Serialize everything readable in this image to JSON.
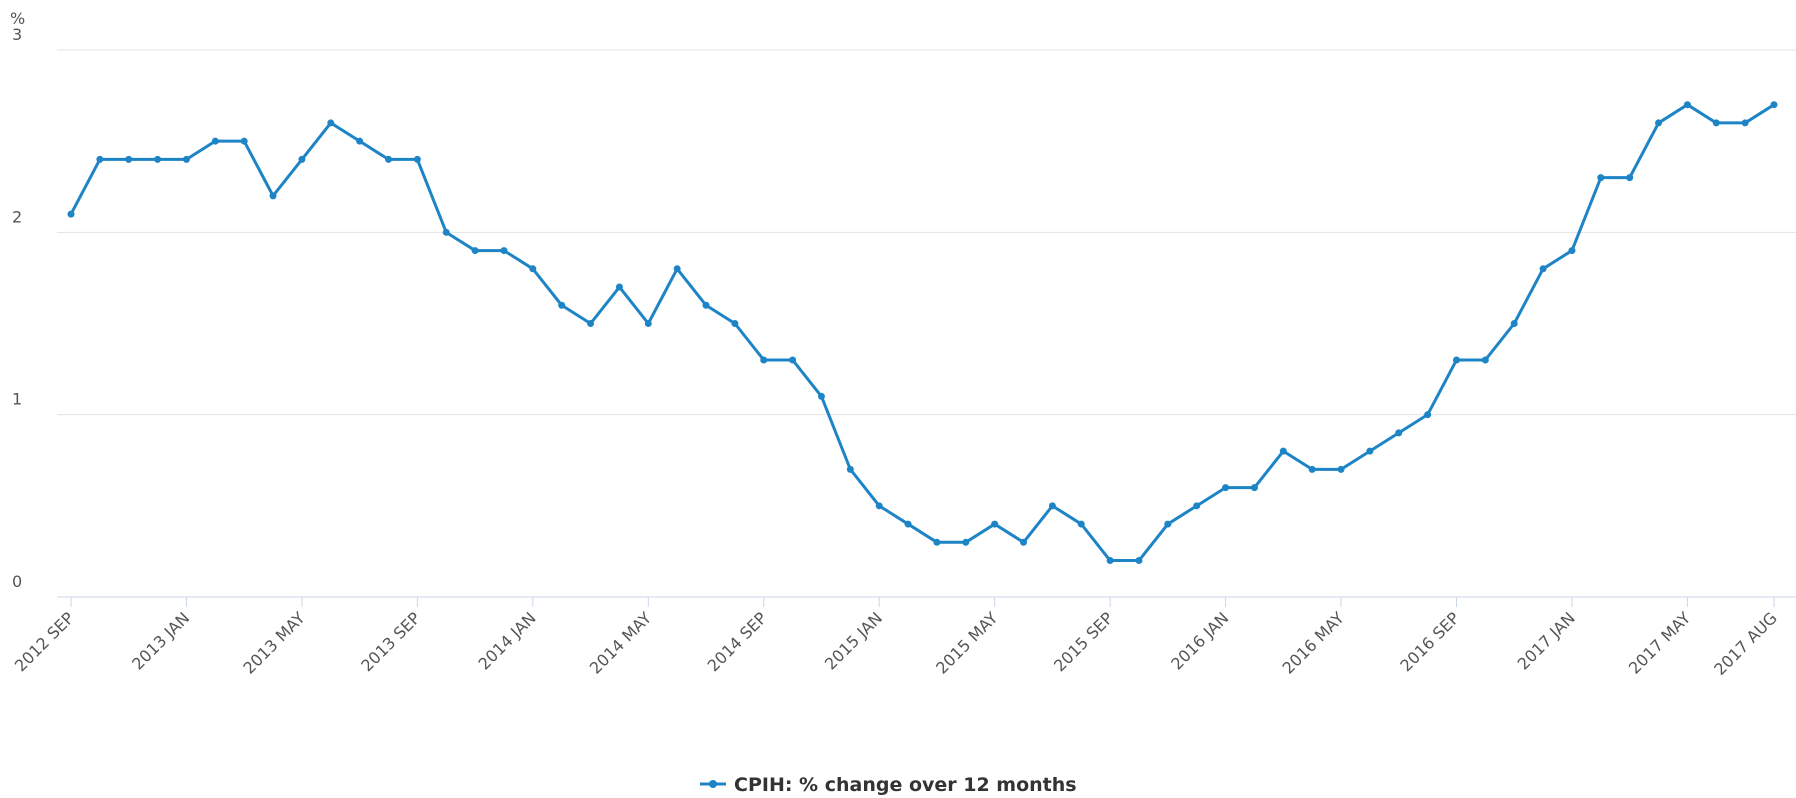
{
  "chart_data": {
    "type": "line",
    "y_label": "%",
    "categories": [
      "2012 SEP",
      null,
      null,
      null,
      "2013 JAN",
      null,
      null,
      null,
      "2013 MAY",
      null,
      null,
      null,
      "2013 SEP",
      null,
      null,
      null,
      "2014 JAN",
      null,
      null,
      null,
      "2014 MAY",
      null,
      null,
      null,
      "2014 SEP",
      null,
      null,
      null,
      "2015 JAN",
      null,
      null,
      null,
      "2015 MAY",
      null,
      null,
      null,
      "2015 SEP",
      null,
      null,
      null,
      "2016 JAN",
      null,
      null,
      null,
      "2016 MAY",
      null,
      null,
      null,
      "2016 SEP",
      null,
      null,
      null,
      "2017 JAN",
      null,
      null,
      null,
      "2017 MAY",
      null,
      null,
      "2017 AUG"
    ],
    "series": [
      {
        "name": "CPIH: % change over 12 months",
        "color": "#1d84c6",
        "values": [
          2.1,
          2.4,
          2.4,
          2.4,
          2.4,
          2.5,
          2.5,
          2.2,
          2.4,
          2.6,
          2.5,
          2.4,
          2.4,
          2.0,
          1.9,
          1.9,
          1.8,
          1.6,
          1.5,
          1.7,
          1.5,
          1.8,
          1.6,
          1.5,
          1.3,
          1.3,
          1.1,
          0.7,
          0.5,
          0.4,
          0.3,
          0.3,
          0.4,
          0.3,
          0.5,
          0.4,
          0.2,
          0.2,
          0.4,
          0.5,
          0.6,
          0.6,
          0.8,
          0.7,
          0.7,
          0.8,
          0.9,
          1.0,
          1.3,
          1.3,
          1.5,
          1.8,
          1.9,
          2.3,
          2.3,
          2.6,
          2.7,
          2.6,
          2.6,
          2.7
        ]
      }
    ],
    "ylim": [
      0,
      3
    ],
    "yticks": [
      0,
      1,
      2,
      3
    ],
    "grid": true,
    "legend": "bottom"
  }
}
